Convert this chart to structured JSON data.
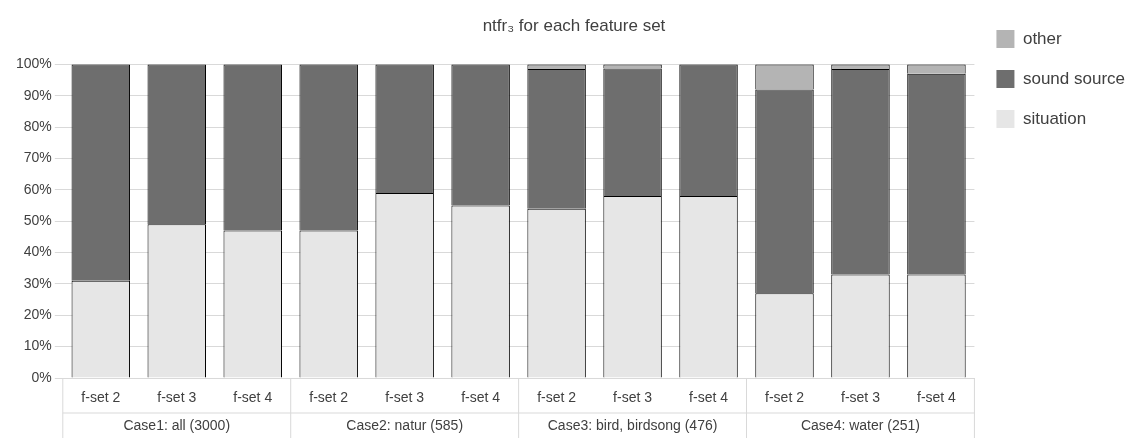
{
  "chart_data": {
    "type": "bar",
    "title": "ntfr₃ for each feature set",
    "stacked": true,
    "categories": [
      "f-set 2",
      "f-set 3",
      "f-set 4",
      "f-set 2",
      "f-set 3",
      "f-set 4",
      "f-set 2",
      "f-set 3",
      "f-set 4",
      "f-set 2",
      "f-set 3",
      "f-set 4"
    ],
    "series": [
      {
        "name": "situation",
        "color": "#e6e6e6",
        "values": [
          31,
          49,
          47,
          47,
          59,
          55,
          54,
          58,
          58,
          27,
          33,
          33
        ]
      },
      {
        "name": "sound source",
        "color": "#6e6e6e",
        "values": [
          69,
          51,
          53,
          53,
          41,
          45,
          44.5,
          40.7,
          42,
          65,
          65.5,
          64
        ]
      },
      {
        "name": "other",
        "color": "#b4b4b4",
        "values": [
          0,
          0,
          0,
          0,
          0,
          0,
          1.5,
          1.3,
          0,
          8,
          1.5,
          3
        ]
      }
    ],
    "annotations": [
      "Case1: all (3000)",
      "Case2: natur (585)",
      "Case3: bird, birdsong (476)",
      "Case4: water (251)"
    ],
    "ylim": [
      0,
      100
    ],
    "yticks": [
      {
        "value": 0,
        "label": "0%"
      },
      {
        "value": 10,
        "label": "10%"
      },
      {
        "value": 20,
        "label": "20%"
      },
      {
        "value": 30,
        "label": "30%"
      },
      {
        "value": 40,
        "label": "40%"
      },
      {
        "value": 50,
        "label": "50%"
      },
      {
        "value": 60,
        "label": "60%"
      },
      {
        "value": 70,
        "label": "70%"
      },
      {
        "value": 80,
        "label": "80%"
      },
      {
        "value": 90,
        "label": "90%"
      },
      {
        "value": 100,
        "label": "100%"
      }
    ],
    "grid": "y",
    "legend": "top right"
  }
}
